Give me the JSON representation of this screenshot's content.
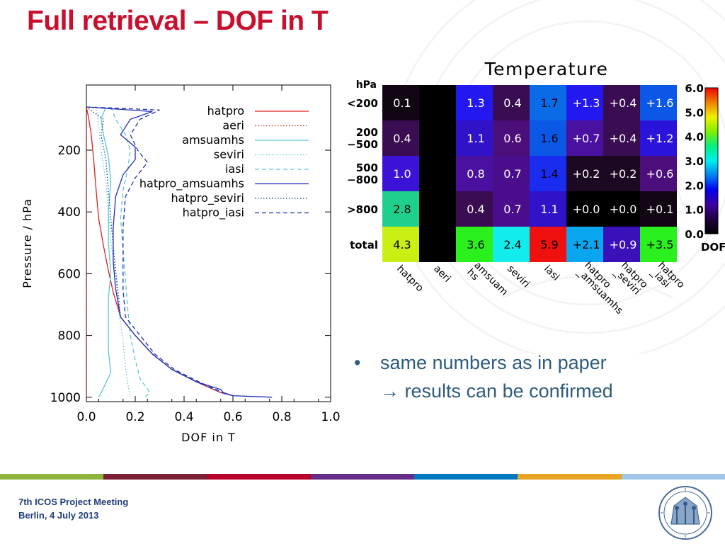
{
  "slide": {
    "title": "Full retrieval – DOF in T",
    "bullet_symbol": "•",
    "bullet_line1": "same numbers as in paper",
    "bullet_line2": "results can be confirmed",
    "bullet_arrow": "→",
    "footer_line1": "7th ICOS Project Meeting",
    "footer_line2": "Berlin, 4 July 2013",
    "footer_colors": [
      "#8db33c",
      "#7b2036",
      "#b8002a",
      "#652d86",
      "#0078c0",
      "#e8a524",
      "#9fc5e8"
    ],
    "seal_icon": "university-seal-icon"
  },
  "chart_data": [
    {
      "type": "line",
      "xlabel": "DOF in T",
      "ylabel": "Pressure / hPa",
      "xlim": [
        0.0,
        1.0
      ],
      "ylim": [
        1000,
        0
      ],
      "xticks": [
        "0.0",
        "0.2",
        "0.4",
        "0.6",
        "0.8",
        "1.0"
      ],
      "yticks": [
        "200",
        "400",
        "600",
        "800",
        "1000"
      ],
      "ytick_values": [
        200,
        400,
        600,
        800,
        1000
      ],
      "legend_position": "top-right",
      "series": [
        {
          "name": "hatpro",
          "color": "#e0201b",
          "dash": "solid",
          "points": [
            [
              0.0,
              60
            ],
            [
              0.01,
              100
            ],
            [
              0.02,
              150
            ],
            [
              0.03,
              230
            ],
            [
              0.04,
              330
            ],
            [
              0.05,
              420
            ],
            [
              0.07,
              510
            ],
            [
              0.09,
              590
            ],
            [
              0.11,
              660
            ],
            [
              0.14,
              740
            ],
            [
              0.2,
              800
            ],
            [
              0.27,
              860
            ],
            [
              0.35,
              910
            ],
            [
              0.45,
              950
            ],
            [
              0.55,
              985
            ],
            [
              0.6,
              995
            ]
          ]
        },
        {
          "name": "aeri",
          "color": "#e0201b",
          "dash": "dot",
          "points": [
            [
              0.0,
              60
            ],
            [
              0.0,
              1000
            ]
          ]
        },
        {
          "name": "amsuamhs",
          "color": "#5cc8d0",
          "dash": "solid",
          "points": [
            [
              0.08,
              60
            ],
            [
              0.06,
              100
            ],
            [
              0.07,
              150
            ],
            [
              0.09,
              220
            ],
            [
              0.1,
              300
            ],
            [
              0.09,
              400
            ],
            [
              0.09,
              500
            ],
            [
              0.1,
              600
            ],
            [
              0.09,
              680
            ],
            [
              0.09,
              760
            ],
            [
              0.09,
              850
            ],
            [
              0.1,
              920
            ],
            [
              0.07,
              970
            ],
            [
              0.05,
              1000
            ]
          ]
        },
        {
          "name": "seviri",
          "color": "#5cc8d0",
          "dash": "dot",
          "points": [
            [
              0.04,
              60
            ],
            [
              0.05,
              120
            ],
            [
              0.06,
              200
            ],
            [
              0.08,
              300
            ],
            [
              0.09,
              400
            ],
            [
              0.1,
              500
            ],
            [
              0.12,
              600
            ],
            [
              0.13,
              700
            ],
            [
              0.15,
              820
            ],
            [
              0.16,
              900
            ],
            [
              0.17,
              960
            ],
            [
              0.18,
              1000
            ]
          ]
        },
        {
          "name": "iasi",
          "color": "#5cc8d0",
          "dash": "dash",
          "points": [
            [
              0.1,
              60
            ],
            [
              0.12,
              100
            ],
            [
              0.16,
              150
            ],
            [
              0.18,
              200
            ],
            [
              0.17,
              260
            ],
            [
              0.15,
              330
            ],
            [
              0.14,
              420
            ],
            [
              0.15,
              520
            ],
            [
              0.16,
              620
            ],
            [
              0.17,
              720
            ],
            [
              0.18,
              800
            ],
            [
              0.2,
              880
            ],
            [
              0.22,
              940
            ],
            [
              0.26,
              985
            ],
            [
              0.24,
              1000
            ]
          ]
        },
        {
          "name": "hatpro_amsuamhs",
          "color": "#1f2fb8",
          "dash": "solid",
          "points": [
            [
              0.0,
              60
            ],
            [
              0.27,
              75
            ],
            [
              0.18,
              100
            ],
            [
              0.14,
              150
            ],
            [
              0.2,
              190
            ],
            [
              0.2,
              230
            ],
            [
              0.15,
              280
            ],
            [
              0.12,
              350
            ],
            [
              0.11,
              450
            ],
            [
              0.11,
              560
            ],
            [
              0.12,
              650
            ],
            [
              0.14,
              740
            ],
            [
              0.2,
              800
            ],
            [
              0.27,
              860
            ],
            [
              0.35,
              910
            ],
            [
              0.45,
              950
            ],
            [
              0.55,
              975
            ],
            [
              0.56,
              985
            ],
            [
              0.6,
              995
            ],
            [
              0.76,
              1000
            ]
          ]
        },
        {
          "name": "hatpro_seviri",
          "color": "#1f2fb8",
          "dash": "dot",
          "points": [
            [
              0.0,
              60
            ],
            [
              0.07,
              100
            ],
            [
              0.06,
              150
            ],
            [
              0.08,
              230
            ],
            [
              0.09,
              330
            ],
            [
              0.1,
              420
            ],
            [
              0.11,
              510
            ],
            [
              0.12,
              590
            ],
            [
              0.13,
              660
            ],
            [
              0.14,
              740
            ],
            [
              0.2,
              800
            ],
            [
              0.27,
              860
            ],
            [
              0.35,
              910
            ],
            [
              0.45,
              950
            ],
            [
              0.55,
              985
            ],
            [
              0.6,
              995
            ]
          ]
        },
        {
          "name": "hatpro_iasi",
          "color": "#1f2fb8",
          "dash": "dash",
          "points": [
            [
              0.0,
              60
            ],
            [
              0.3,
              70
            ],
            [
              0.22,
              100
            ],
            [
              0.18,
              150
            ],
            [
              0.21,
              200
            ],
            [
              0.25,
              240
            ],
            [
              0.2,
              290
            ],
            [
              0.16,
              350
            ],
            [
              0.15,
              450
            ],
            [
              0.15,
              560
            ],
            [
              0.15,
              650
            ],
            [
              0.16,
              740
            ],
            [
              0.22,
              800
            ],
            [
              0.28,
              860
            ],
            [
              0.36,
              910
            ],
            [
              0.46,
              950
            ],
            [
              0.56,
              985
            ],
            [
              0.6,
              995
            ]
          ]
        }
      ]
    },
    {
      "type": "heatmap",
      "title": "Temperature",
      "row_unit": "hPa",
      "rows": [
        "<200",
        "200\n−500",
        "500\n−800",
        ">800",
        "total"
      ],
      "columns": [
        "hatpro",
        "aeri",
        "amsuam\nhs",
        "seviri",
        "iasi",
        "hatpro\n_amsuamhs",
        "hatpro\n_seviri",
        "hatpro\n_iasi"
      ],
      "cells": [
        [
          {
            "v": "0.1",
            "c": "#120614",
            "t": "#ffffff"
          },
          {
            "v": "",
            "c": "#000000",
            "t": "#ffffff"
          },
          {
            "v": "1.3",
            "c": "#2418f0",
            "t": "#ffffff"
          },
          {
            "v": "0.4",
            "c": "#3a0c52",
            "t": "#ffffff"
          },
          {
            "v": "1.7",
            "c": "#0a6be8",
            "t": "#000000"
          },
          {
            "v": "+1.3",
            "c": "#2418f0",
            "t": "#ffffff"
          },
          {
            "v": "+0.4",
            "c": "#3a0c52",
            "t": "#ffffff"
          },
          {
            "v": "+1.6",
            "c": "#0b58e6",
            "t": "#ffffff"
          }
        ],
        [
          {
            "v": "0.4",
            "c": "#3a0c52",
            "t": "#ffffff"
          },
          {
            "v": "",
            "c": "#000000",
            "t": "#ffffff"
          },
          {
            "v": "1.1",
            "c": "#3012c8",
            "t": "#ffffff"
          },
          {
            "v": "0.6",
            "c": "#4c0e7a",
            "t": "#ffffff"
          },
          {
            "v": "1.6",
            "c": "#0b58e6",
            "t": "#000000"
          },
          {
            "v": "+0.7",
            "c": "#4a10a0",
            "t": "#ffffff"
          },
          {
            "v": "+0.4",
            "c": "#3a0c52",
            "t": "#ffffff"
          },
          {
            "v": "+1.2",
            "c": "#2a14dc",
            "t": "#ffffff"
          }
        ],
        [
          {
            "v": "1.0",
            "c": "#3b12d8",
            "t": "#ffffff"
          },
          {
            "v": "",
            "c": "#000000",
            "t": "#ffffff"
          },
          {
            "v": "0.8",
            "c": "#4a10a0",
            "t": "#ffffff"
          },
          {
            "v": "0.7",
            "c": "#4a0e8c",
            "t": "#ffffff"
          },
          {
            "v": "1.4",
            "c": "#1a2cf0",
            "t": "#000000"
          },
          {
            "v": "+0.2",
            "c": "#1c0822",
            "t": "#ffffff"
          },
          {
            "v": "+0.2",
            "c": "#1c0822",
            "t": "#ffffff"
          },
          {
            "v": "+0.6",
            "c": "#4c0e7a",
            "t": "#ffffff"
          }
        ],
        [
          {
            "v": "2.8",
            "c": "#1ed08c",
            "t": "#000000"
          },
          {
            "v": "",
            "c": "#000000",
            "t": "#ffffff"
          },
          {
            "v": "0.4",
            "c": "#3a0c52",
            "t": "#ffffff"
          },
          {
            "v": "0.7",
            "c": "#4a0e8c",
            "t": "#ffffff"
          },
          {
            "v": "1.1",
            "c": "#3012c8",
            "t": "#ffffff"
          },
          {
            "v": "+0.0",
            "c": "#000000",
            "t": "#ffffff"
          },
          {
            "v": "+0.0",
            "c": "#000000",
            "t": "#ffffff"
          },
          {
            "v": "+0.1",
            "c": "#120614",
            "t": "#ffffff"
          }
        ],
        [
          {
            "v": "4.3",
            "c": "#c8f014",
            "t": "#000000"
          },
          {
            "v": "",
            "c": "#000000",
            "t": "#ffffff"
          },
          {
            "v": "3.6",
            "c": "#2af01e",
            "t": "#000000"
          },
          {
            "v": "2.4",
            "c": "#12ecec",
            "t": "#000000"
          },
          {
            "v": "5.9",
            "c": "#f01010",
            "t": "#000000"
          },
          {
            "v": "+2.1",
            "c": "#0aa6f0",
            "t": "#000000"
          },
          {
            "v": "+0.9",
            "c": "#3a10b8",
            "t": "#ffffff"
          },
          {
            "v": "+3.5",
            "c": "#2af01e",
            "t": "#000000"
          }
        ]
      ],
      "colorbar_ticks": [
        "6.0",
        "5.0",
        "4.0",
        "3.0",
        "2.0",
        "1.0",
        "0.0"
      ],
      "colorbar_label": "DOF",
      "colorbar_stops": [
        "#f00000",
        "#f08000",
        "#f0f000",
        "#80f000",
        "#00f080",
        "#00f0f0",
        "#0080f0",
        "#0000f0",
        "#4000a0",
        "#200040",
        "#000000"
      ]
    }
  ]
}
